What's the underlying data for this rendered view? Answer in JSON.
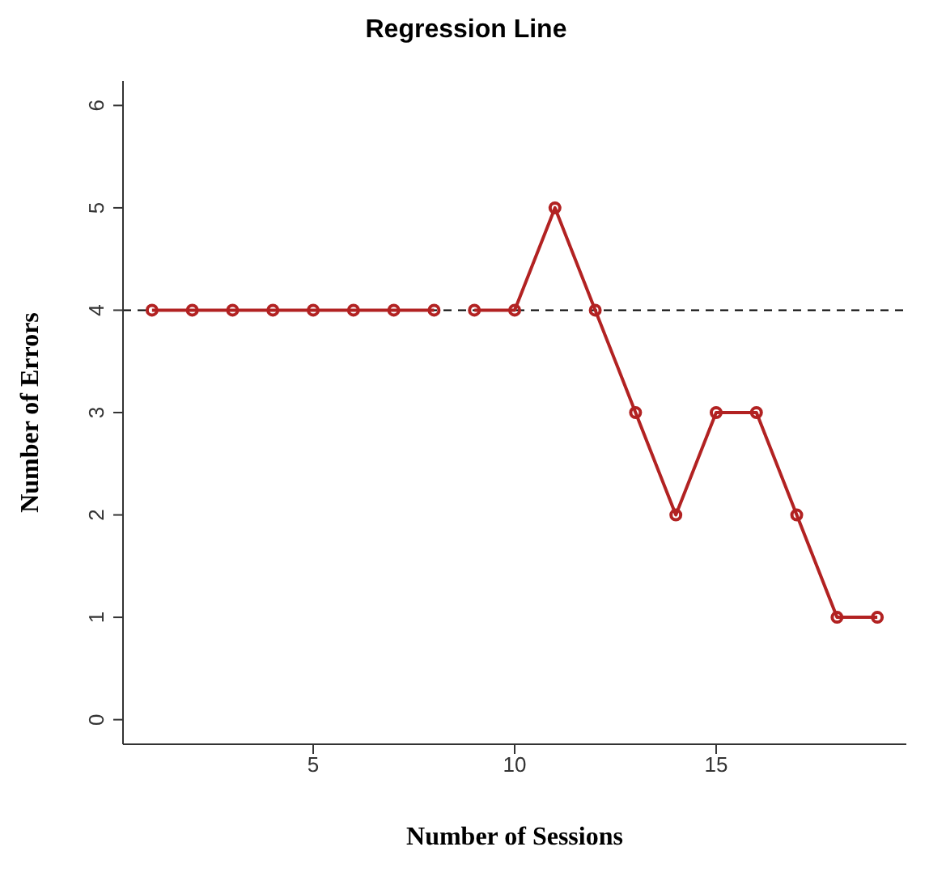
{
  "chart_data": {
    "type": "line",
    "title": "Regression Line",
    "xlabel": "Number of Sessions",
    "ylabel": "Number of Errors",
    "series": [
      {
        "color": "#b22222",
        "x": [
          1,
          2,
          3,
          4,
          5,
          6,
          7,
          8
        ],
        "values": [
          4,
          4,
          4,
          4,
          4,
          4,
          4,
          4
        ]
      },
      {
        "color": "#b22222",
        "x": [
          9,
          10,
          11,
          12,
          13,
          14,
          15,
          16,
          17,
          18,
          19
        ],
        "values": [
          4,
          4,
          5,
          4,
          3,
          2,
          3,
          3,
          2,
          1,
          1
        ]
      }
    ],
    "xlim": [
      0.28,
      19.72
    ],
    "xticks": [
      5,
      10,
      15
    ],
    "ylim": [
      -0.24,
      6.24
    ],
    "yticks": [
      0,
      1,
      2,
      3,
      4,
      5,
      6
    ],
    "ref_lines": [
      {
        "axis": "y",
        "value": 4,
        "color": "#000000",
        "line_style": "dashed"
      }
    ],
    "grid": false,
    "legend": false,
    "marker": "circle",
    "line_style": "solid"
  }
}
